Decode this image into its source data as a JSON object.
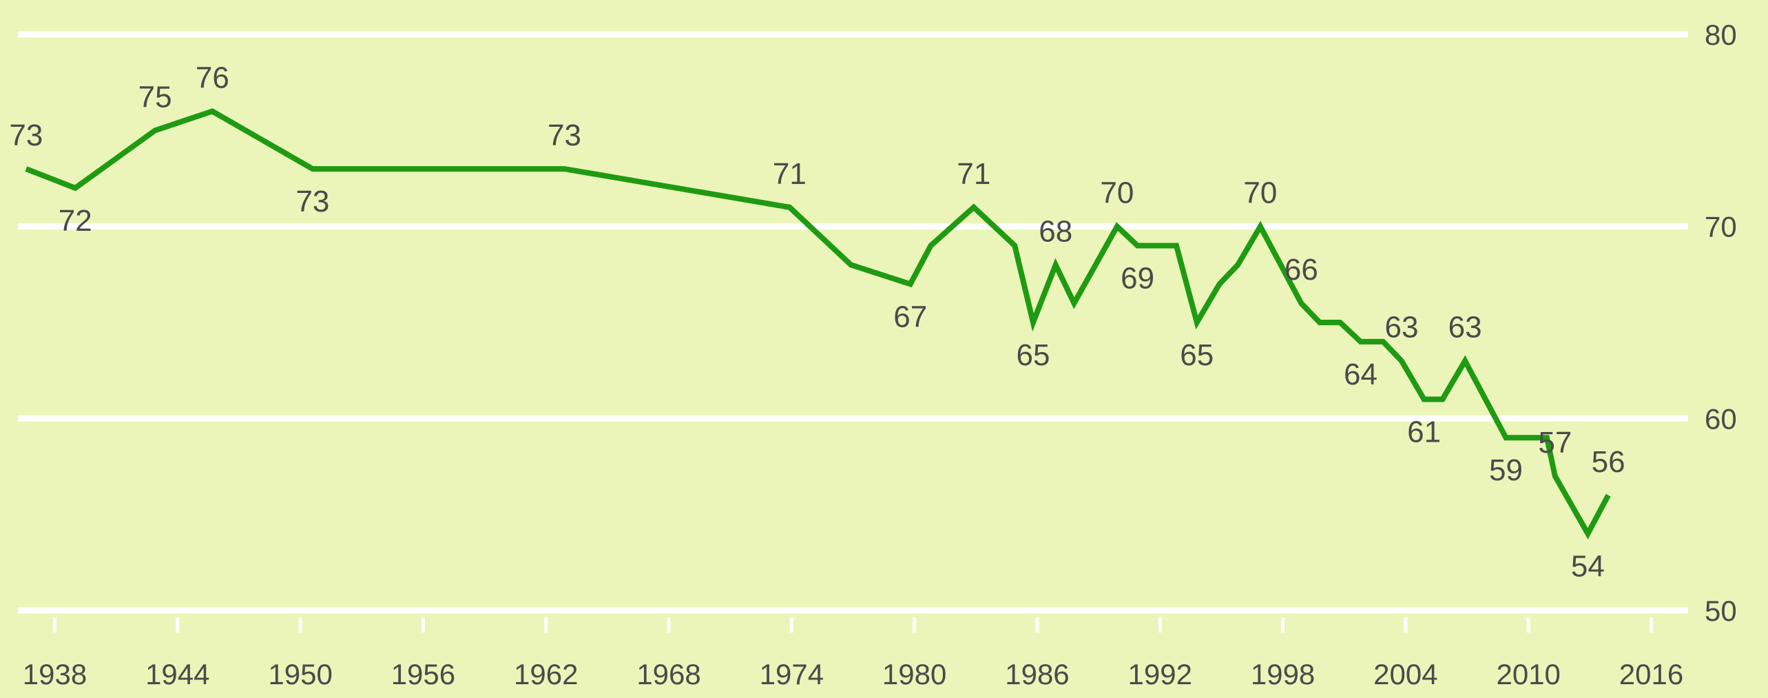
{
  "chart_data": {
    "type": "line",
    "title": "",
    "xlabel": "",
    "ylabel": "",
    "xlim": [
      1936.2,
      2017.8
    ],
    "ylim": [
      50,
      80
    ],
    "grid": true,
    "x_ticks": [
      1938,
      1944,
      1950,
      1956,
      1962,
      1968,
      1974,
      1980,
      1986,
      1992,
      1998,
      2004,
      2010,
      2016
    ],
    "y_ticks": [
      50,
      60,
      70,
      80
    ],
    "line_color": "#1f9a12",
    "background_color": "#ebf5b9",
    "gridline_color": "#ffffff",
    "series": [
      {
        "points": [
          {
            "x": 1936.6,
            "y": 73,
            "label": "73"
          },
          {
            "x": 1939,
            "y": 72,
            "label": "72"
          },
          {
            "x": 1942.9,
            "y": 75,
            "label": "75"
          },
          {
            "x": 1945.7,
            "y": 76,
            "label": "76"
          },
          {
            "x": 1950.6,
            "y": 73,
            "label": "73"
          },
          {
            "x": 1962.9,
            "y": 73,
            "label": "73"
          },
          {
            "x": 1973.9,
            "y": 71,
            "label": "71"
          },
          {
            "x": 1976.9,
            "y": 68
          },
          {
            "x": 1979.8,
            "y": 67,
            "label": "67"
          },
          {
            "x": 1980.8,
            "y": 69
          },
          {
            "x": 1982.9,
            "y": 71,
            "label": "71"
          },
          {
            "x": 1984.9,
            "y": 69
          },
          {
            "x": 1985.8,
            "y": 65,
            "label": "65"
          },
          {
            "x": 1986.9,
            "y": 68,
            "label": "68"
          },
          {
            "x": 1987.8,
            "y": 66
          },
          {
            "x": 1989.9,
            "y": 70,
            "label": "70"
          },
          {
            "x": 1990.9,
            "y": 69,
            "label": "69"
          },
          {
            "x": 1992.8,
            "y": 69
          },
          {
            "x": 1993.8,
            "y": 65,
            "label": "65"
          },
          {
            "x": 1994.9,
            "y": 67
          },
          {
            "x": 1995.8,
            "y": 68
          },
          {
            "x": 1996.9,
            "y": 70,
            "label": "70"
          },
          {
            "x": 1998.9,
            "y": 66,
            "label": "66"
          },
          {
            "x": 1999.8,
            "y": 65
          },
          {
            "x": 2000.8,
            "y": 65
          },
          {
            "x": 2001.8,
            "y": 64,
            "label": "64"
          },
          {
            "x": 2002.9,
            "y": 64
          },
          {
            "x": 2003.8,
            "y": 63,
            "label": "63"
          },
          {
            "x": 2004.9,
            "y": 61,
            "label": "61"
          },
          {
            "x": 2005.8,
            "y": 61
          },
          {
            "x": 2006.9,
            "y": 63,
            "label": "63"
          },
          {
            "x": 2008.9,
            "y": 59,
            "label": "59"
          },
          {
            "x": 2010.9,
            "y": 59
          },
          {
            "x": 2011.3,
            "y": 57,
            "label": "57"
          },
          {
            "x": 2012.9,
            "y": 54,
            "label": "54"
          },
          {
            "x": 2013.9,
            "y": 56,
            "label": "56"
          }
        ]
      }
    ]
  }
}
